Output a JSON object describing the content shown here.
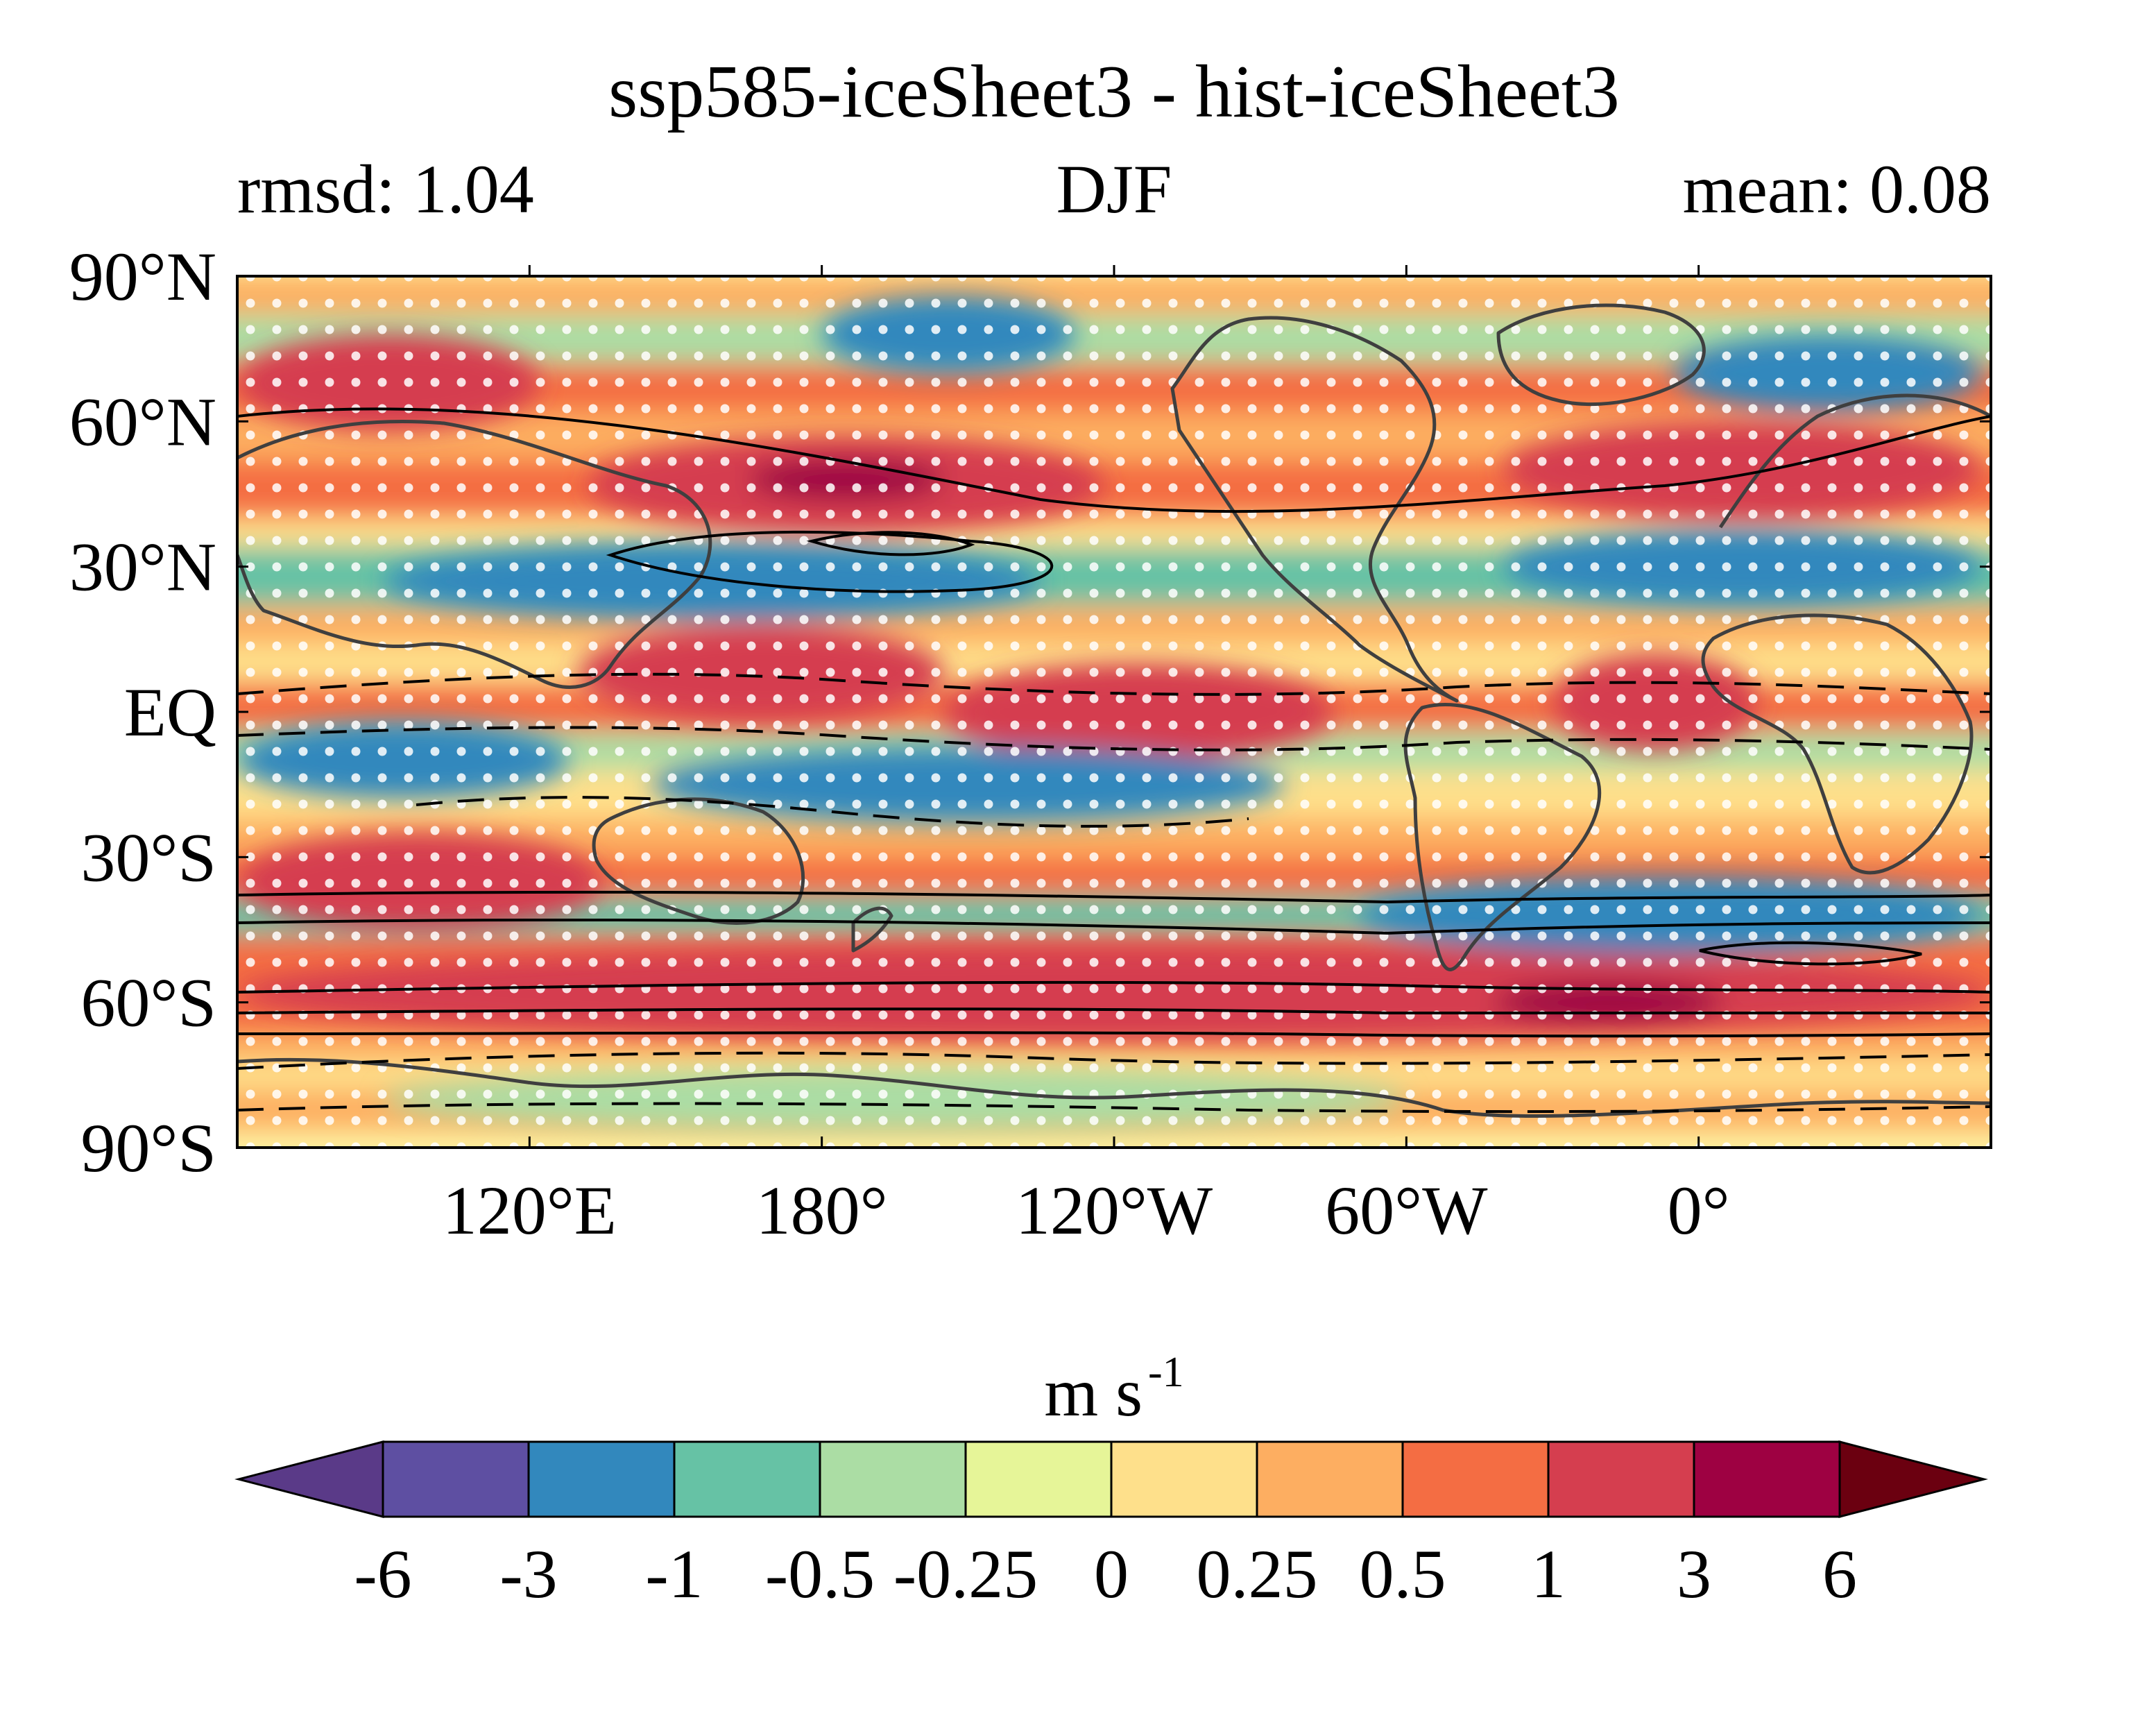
{
  "chart_data": {
    "type": "heatmap",
    "projection": "equirectangular",
    "title": "ssp585-iceSheet3 - hist-iceSheet3",
    "subtitle_left": "rmsd: 1.04",
    "subtitle_center": "DJF",
    "subtitle_right": "mean: 0.08",
    "stats": {
      "rmsd": 1.04,
      "mean": 0.08,
      "season": "DJF"
    },
    "lon_range": [
      60,
      420
    ],
    "lat_range": [
      -90,
      90
    ],
    "x_ticks": [
      {
        "lon": 120,
        "label": "120°E"
      },
      {
        "lon": 180,
        "label": "180°"
      },
      {
        "lon": 240,
        "label": "120°W"
      },
      {
        "lon": 300,
        "label": "60°W"
      },
      {
        "lon": 360,
        "label": "0°"
      }
    ],
    "y_ticks": [
      {
        "lat": 90,
        "label": "90°N"
      },
      {
        "lat": 60,
        "label": "60°N"
      },
      {
        "lat": 30,
        "label": "30°N"
      },
      {
        "lat": 0,
        "label": "EQ"
      },
      {
        "lat": -30,
        "label": "30°S"
      },
      {
        "lat": -60,
        "label": "60°S"
      },
      {
        "lat": -90,
        "label": "90°S"
      }
    ],
    "colorbar": {
      "unit_base": "m s",
      "unit_exp": "-1",
      "levels": [
        -6,
        -3,
        -1,
        -0.5,
        -0.25,
        0,
        0.25,
        0.5,
        1,
        3,
        6
      ],
      "level_labels": [
        "-6",
        "-3",
        "-1",
        "-0.5",
        "-0.25",
        "0",
        "0.25",
        "0.5",
        "1",
        "3",
        "6"
      ],
      "colors": [
        "#5e4fa2",
        "#3288bd",
        "#66c2a5",
        "#abdda4",
        "#e6f598",
        "#fee08b",
        "#fdae61",
        "#f46d43",
        "#d53e4f",
        "#9e0142"
      ],
      "under_color": "#5a3a88",
      "over_color": "#6b0010",
      "extend": "both"
    },
    "anomaly_bands": [
      {
        "lat": 78,
        "lon_start": 180,
        "lon_end": 232,
        "value": -3
      },
      {
        "lat": 70,
        "lon_start": 355,
        "lon_end": 418,
        "value": -3
      },
      {
        "lat": 68,
        "lon_start": 60,
        "lon_end": 122,
        "value": 1
      },
      {
        "lat": 47,
        "lon_start": 132,
        "lon_end": 238,
        "value": 1
      },
      {
        "lat": 48,
        "lon_start": 165,
        "lon_end": 205,
        "value": 3
      },
      {
        "lat": 50,
        "lon_start": 320,
        "lon_end": 418,
        "value": 1
      },
      {
        "lat": 27,
        "lon_start": 90,
        "lon_end": 225,
        "value": -3
      },
      {
        "lat": 30,
        "lon_start": 320,
        "lon_end": 418,
        "value": -3
      },
      {
        "lat": 8,
        "lon_start": 130,
        "lon_end": 205,
        "value": 1
      },
      {
        "lat": 0,
        "lon_start": 205,
        "lon_end": 285,
        "value": 1
      },
      {
        "lat": 2,
        "lon_start": 330,
        "lon_end": 372,
        "value": 1
      },
      {
        "lat": -10,
        "lon_start": 60,
        "lon_end": 128,
        "value": -3
      },
      {
        "lat": -15,
        "lon_start": 145,
        "lon_end": 275,
        "value": -3
      },
      {
        "lat": -35,
        "lon_start": 60,
        "lon_end": 135,
        "value": 1
      },
      {
        "lat": -42,
        "lon_start": 290,
        "lon_end": 418,
        "value": -3
      },
      {
        "lat": -58,
        "lon_start": 60,
        "lon_end": 420,
        "value": 1
      },
      {
        "lat": -60,
        "lon_start": 318,
        "lon_end": 365,
        "value": 3
      },
      {
        "lat": -80,
        "lon_start": 90,
        "lon_end": 300,
        "value": -0.5
      }
    ],
    "climatology_contours": "solid lines = positive (westerly), dashed lines = negative (easterly)",
    "stippling": "white dots mark grid points where the change is not significant",
    "coastlines": true
  }
}
